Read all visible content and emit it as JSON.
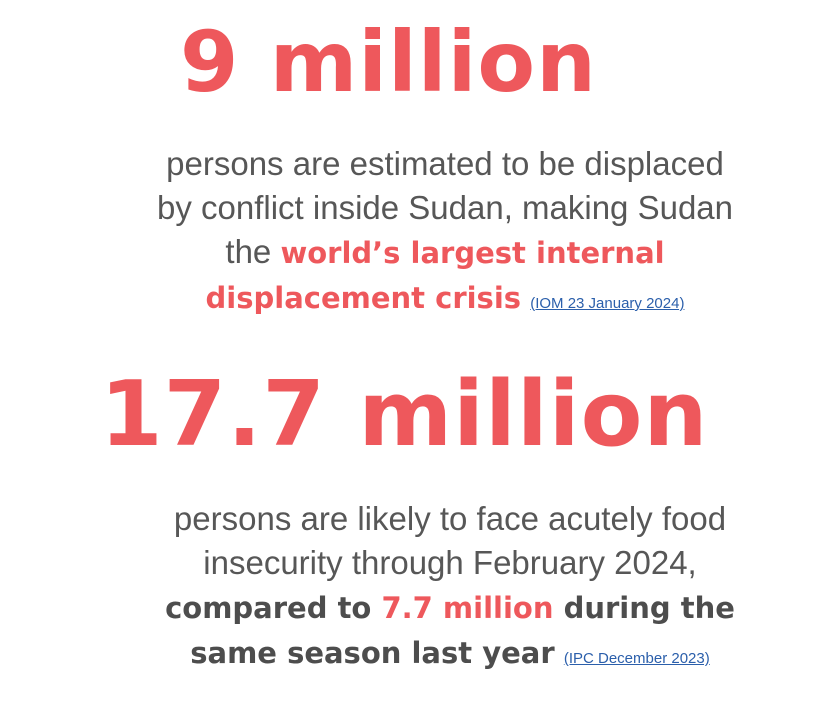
{
  "stat1": {
    "headline": "9 million",
    "line1": "persons are estimated to be displaced",
    "line2": "by conflict inside Sudan, making Sudan",
    "line3_prefix": "the ",
    "highlight_a": "world’s largest internal",
    "highlight_b": "displacement crisis",
    "source": "(IOM 23 January 2024)"
  },
  "stat2": {
    "headline": "17.7 million",
    "line1": "persons are likely to face acutely food",
    "line2": "insecurity through February 2024,",
    "strong_a": "compared to ",
    "highlight": "7.7 million",
    "strong_b": " during the",
    "strong_c": "same season last year",
    "source": "(IPC December 2023)"
  },
  "colors": {
    "accent_red": "#ee585c",
    "body_gray": "#575757",
    "strong_gray": "#4d4d4d",
    "link_blue": "#2b5fab"
  }
}
